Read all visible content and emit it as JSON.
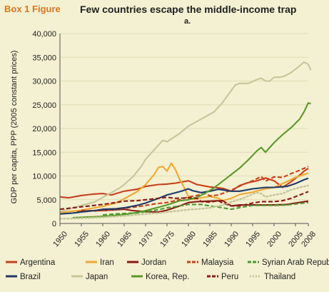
{
  "header": {
    "label": "Box 1 Figure",
    "title": "Few countries escape the middle-income trap",
    "subtitle": "a."
  },
  "chart_data": {
    "type": "line",
    "title": "Few countries escape the middle-income trap",
    "ylabel": "GDP per capita, PPP (2005 constant prices)",
    "xlim": [
      1950,
      2008
    ],
    "ylim": [
      0,
      40000
    ],
    "xticks": [
      1950,
      1955,
      1960,
      1965,
      1970,
      1975,
      1980,
      1985,
      1990,
      1995,
      2000,
      2005,
      2008
    ],
    "yticks": [
      0,
      5000,
      10000,
      15000,
      20000,
      25000,
      30000,
      35000,
      40000
    ],
    "ytick_labels": [
      "0",
      "5,000",
      "10,000",
      "15,000",
      "20,000",
      "25,000",
      "30,000",
      "35,000",
      "40,000"
    ],
    "legend_position": "bottom",
    "series": [
      {
        "name": "Argentina",
        "color": "#c8401a",
        "dash": "solid",
        "points": [
          [
            1950,
            5600
          ],
          [
            1952,
            5400
          ],
          [
            1955,
            5900
          ],
          [
            1958,
            6200
          ],
          [
            1960,
            6300
          ],
          [
            1962,
            6000
          ],
          [
            1965,
            6800
          ],
          [
            1968,
            7200
          ],
          [
            1970,
            7800
          ],
          [
            1973,
            8200
          ],
          [
            1975,
            8300
          ],
          [
            1977,
            8500
          ],
          [
            1980,
            9000
          ],
          [
            1982,
            8200
          ],
          [
            1985,
            7700
          ],
          [
            1988,
            7400
          ],
          [
            1990,
            6800
          ],
          [
            1992,
            8000
          ],
          [
            1994,
            8600
          ],
          [
            1996,
            9000
          ],
          [
            1998,
            9600
          ],
          [
            2000,
            9000
          ],
          [
            2002,
            7600
          ],
          [
            2004,
            8800
          ],
          [
            2006,
            10200
          ],
          [
            2007,
            11000
          ],
          [
            2008,
            11600
          ]
        ]
      },
      {
        "name": "Iran",
        "color": "#f0a830",
        "dash": "solid",
        "points": [
          [
            1950,
            2300
          ],
          [
            1955,
            2800
          ],
          [
            1960,
            3600
          ],
          [
            1963,
            4300
          ],
          [
            1965,
            5200
          ],
          [
            1968,
            6700
          ],
          [
            1970,
            8200
          ],
          [
            1972,
            10300
          ],
          [
            1973,
            11800
          ],
          [
            1974,
            12000
          ],
          [
            1975,
            11000
          ],
          [
            1976,
            12700
          ],
          [
            1977,
            11300
          ],
          [
            1978,
            9200
          ],
          [
            1979,
            7600
          ],
          [
            1980,
            5700
          ],
          [
            1981,
            5100
          ],
          [
            1983,
            5400
          ],
          [
            1985,
            5700
          ],
          [
            1987,
            5300
          ],
          [
            1988,
            4800
          ],
          [
            1990,
            5300
          ],
          [
            1992,
            6100
          ],
          [
            1995,
            6600
          ],
          [
            1998,
            7300
          ],
          [
            2000,
            7600
          ],
          [
            2003,
            8800
          ],
          [
            2005,
            9700
          ],
          [
            2008,
            10600
          ]
        ]
      },
      {
        "name": "Jordan",
        "color": "#8a1a14",
        "dash": "solid",
        "points": [
          [
            1954,
            2400
          ],
          [
            1957,
            2700
          ],
          [
            1960,
            2700
          ],
          [
            1965,
            3000
          ],
          [
            1967,
            2700
          ],
          [
            1970,
            2500
          ],
          [
            1973,
            2400
          ],
          [
            1975,
            2800
          ],
          [
            1978,
            3700
          ],
          [
            1980,
            4400
          ],
          [
            1982,
            4600
          ],
          [
            1985,
            4700
          ],
          [
            1988,
            4800
          ],
          [
            1990,
            3700
          ],
          [
            1992,
            3900
          ],
          [
            1995,
            3900
          ],
          [
            2000,
            3900
          ],
          [
            2003,
            4000
          ],
          [
            2005,
            4300
          ],
          [
            2008,
            4700
          ]
        ]
      },
      {
        "name": "Malaysia",
        "color": "#c8401a",
        "dash": "dash",
        "points": [
          [
            1955,
            2800
          ],
          [
            1958,
            2600
          ],
          [
            1960,
            2800
          ],
          [
            1963,
            3000
          ],
          [
            1965,
            3200
          ],
          [
            1968,
            3500
          ],
          [
            1970,
            3800
          ],
          [
            1972,
            4100
          ],
          [
            1975,
            4400
          ],
          [
            1978,
            5000
          ],
          [
            1980,
            5600
          ],
          [
            1982,
            5900
          ],
          [
            1984,
            6300
          ],
          [
            1985,
            5800
          ],
          [
            1987,
            6000
          ],
          [
            1990,
            7000
          ],
          [
            1993,
            8300
          ],
          [
            1995,
            9000
          ],
          [
            1997,
            9900
          ],
          [
            1998,
            8900
          ],
          [
            2000,
            9800
          ],
          [
            2002,
            9700
          ],
          [
            2004,
            10500
          ],
          [
            2006,
            11200
          ],
          [
            2008,
            12000
          ]
        ]
      },
      {
        "name": "Syrian Arab Republic",
        "color": "#4a9a30",
        "dash": "dash",
        "points": [
          [
            1960,
            1800
          ],
          [
            1963,
            2000
          ],
          [
            1965,
            2100
          ],
          [
            1968,
            2200
          ],
          [
            1970,
            2500
          ],
          [
            1973,
            2900
          ],
          [
            1975,
            3300
          ],
          [
            1978,
            3700
          ],
          [
            1980,
            4000
          ],
          [
            1983,
            4000
          ],
          [
            1985,
            3700
          ],
          [
            1988,
            3300
          ],
          [
            1990,
            3000
          ],
          [
            1993,
            3500
          ],
          [
            1995,
            3800
          ],
          [
            2000,
            3800
          ],
          [
            2003,
            3900
          ],
          [
            2005,
            4100
          ],
          [
            2008,
            4400
          ]
        ]
      },
      {
        "name": "Brazil",
        "color": "#1a3a6a",
        "dash": "solid",
        "points": [
          [
            1950,
            2000
          ],
          [
            1953,
            2200
          ],
          [
            1955,
            2400
          ],
          [
            1958,
            2700
          ],
          [
            1960,
            3000
          ],
          [
            1963,
            3100
          ],
          [
            1965,
            3300
          ],
          [
            1968,
            3800
          ],
          [
            1970,
            4300
          ],
          [
            1973,
            5300
          ],
          [
            1975,
            6000
          ],
          [
            1978,
            6700
          ],
          [
            1980,
            7300
          ],
          [
            1981,
            6900
          ],
          [
            1983,
            6500
          ],
          [
            1985,
            6800
          ],
          [
            1987,
            7200
          ],
          [
            1990,
            6800
          ],
          [
            1992,
            6800
          ],
          [
            1995,
            7300
          ],
          [
            1998,
            7600
          ],
          [
            2000,
            7600
          ],
          [
            2003,
            7800
          ],
          [
            2005,
            8400
          ],
          [
            2007,
            9200
          ],
          [
            2008,
            9500
          ]
        ]
      },
      {
        "name": "Japan",
        "color": "#c5c79a",
        "dash": "solid",
        "points": [
          [
            1950,
            2500
          ],
          [
            1952,
            3000
          ],
          [
            1955,
            3800
          ],
          [
            1958,
            4500
          ],
          [
            1960,
            5500
          ],
          [
            1962,
            6500
          ],
          [
            1964,
            7500
          ],
          [
            1965,
            8200
          ],
          [
            1967,
            9800
          ],
          [
            1969,
            12000
          ],
          [
            1970,
            13500
          ],
          [
            1972,
            15500
          ],
          [
            1973,
            16500
          ],
          [
            1974,
            17500
          ],
          [
            1975,
            17200
          ],
          [
            1976,
            17800
          ],
          [
            1978,
            19000
          ],
          [
            1980,
            20500
          ],
          [
            1982,
            21500
          ],
          [
            1984,
            22500
          ],
          [
            1986,
            23500
          ],
          [
            1988,
            25500
          ],
          [
            1990,
            28000
          ],
          [
            1991,
            29200
          ],
          [
            1992,
            29500
          ],
          [
            1994,
            29500
          ],
          [
            1996,
            30300
          ],
          [
            1997,
            30600
          ],
          [
            1998,
            30000
          ],
          [
            1999,
            30000
          ],
          [
            2000,
            30800
          ],
          [
            2001,
            30800
          ],
          [
            2002,
            30900
          ],
          [
            2003,
            31300
          ],
          [
            2004,
            31800
          ],
          [
            2005,
            32500
          ],
          [
            2006,
            33200
          ],
          [
            2007,
            34000
          ],
          [
            2008,
            33500
          ],
          [
            2008.6,
            32300
          ]
        ]
      },
      {
        "name": "Korea, Rep.",
        "color": "#5a9a28",
        "dash": "solid",
        "points": [
          [
            1953,
            1200
          ],
          [
            1955,
            1300
          ],
          [
            1958,
            1400
          ],
          [
            1960,
            1500
          ],
          [
            1963,
            1700
          ],
          [
            1965,
            1900
          ],
          [
            1968,
            2300
          ],
          [
            1970,
            2700
          ],
          [
            1973,
            3400
          ],
          [
            1975,
            3900
          ],
          [
            1978,
            4800
          ],
          [
            1980,
            5000
          ],
          [
            1982,
            5500
          ],
          [
            1984,
            6400
          ],
          [
            1986,
            7500
          ],
          [
            1988,
            8900
          ],
          [
            1990,
            10300
          ],
          [
            1992,
            11700
          ],
          [
            1994,
            13400
          ],
          [
            1996,
            15300
          ],
          [
            1997,
            16000
          ],
          [
            1998,
            15000
          ],
          [
            2000,
            17000
          ],
          [
            2002,
            18700
          ],
          [
            2004,
            20200
          ],
          [
            2006,
            22000
          ],
          [
            2007,
            23500
          ],
          [
            2008,
            25400
          ],
          [
            2008.6,
            25200
          ]
        ]
      },
      {
        "name": "Peru",
        "color": "#8a1a14",
        "dash": "dash",
        "points": [
          [
            1950,
            3000
          ],
          [
            1953,
            3300
          ],
          [
            1955,
            3500
          ],
          [
            1958,
            3800
          ],
          [
            1960,
            4000
          ],
          [
            1963,
            4400
          ],
          [
            1965,
            4700
          ],
          [
            1968,
            4800
          ],
          [
            1970,
            5000
          ],
          [
            1973,
            5300
          ],
          [
            1975,
            5500
          ],
          [
            1977,
            5300
          ],
          [
            1980,
            5400
          ],
          [
            1982,
            5300
          ],
          [
            1983,
            4600
          ],
          [
            1985,
            4500
          ],
          [
            1987,
            4800
          ],
          [
            1988,
            4300
          ],
          [
            1990,
            3700
          ],
          [
            1992,
            3700
          ],
          [
            1995,
            4300
          ],
          [
            1997,
            4600
          ],
          [
            2000,
            4600
          ],
          [
            2002,
            4800
          ],
          [
            2004,
            5300
          ],
          [
            2006,
            6000
          ],
          [
            2008,
            6700
          ]
        ]
      },
      {
        "name": "Thailand",
        "color": "#c5c79a",
        "dash": "dot",
        "points": [
          [
            1950,
            1000
          ],
          [
            1955,
            1100
          ],
          [
            1960,
            1300
          ],
          [
            1965,
            1600
          ],
          [
            1970,
            2000
          ],
          [
            1973,
            2200
          ],
          [
            1975,
            2400
          ],
          [
            1978,
            2700
          ],
          [
            1980,
            2900
          ],
          [
            1983,
            3100
          ],
          [
            1985,
            3300
          ],
          [
            1988,
            3900
          ],
          [
            1990,
            4500
          ],
          [
            1993,
            5400
          ],
          [
            1995,
            6200
          ],
          [
            1996,
            6500
          ],
          [
            1997,
            6300
          ],
          [
            1998,
            5600
          ],
          [
            2000,
            6000
          ],
          [
            2002,
            6300
          ],
          [
            2004,
            7100
          ],
          [
            2006,
            7600
          ],
          [
            2008,
            8000
          ]
        ]
      }
    ]
  }
}
